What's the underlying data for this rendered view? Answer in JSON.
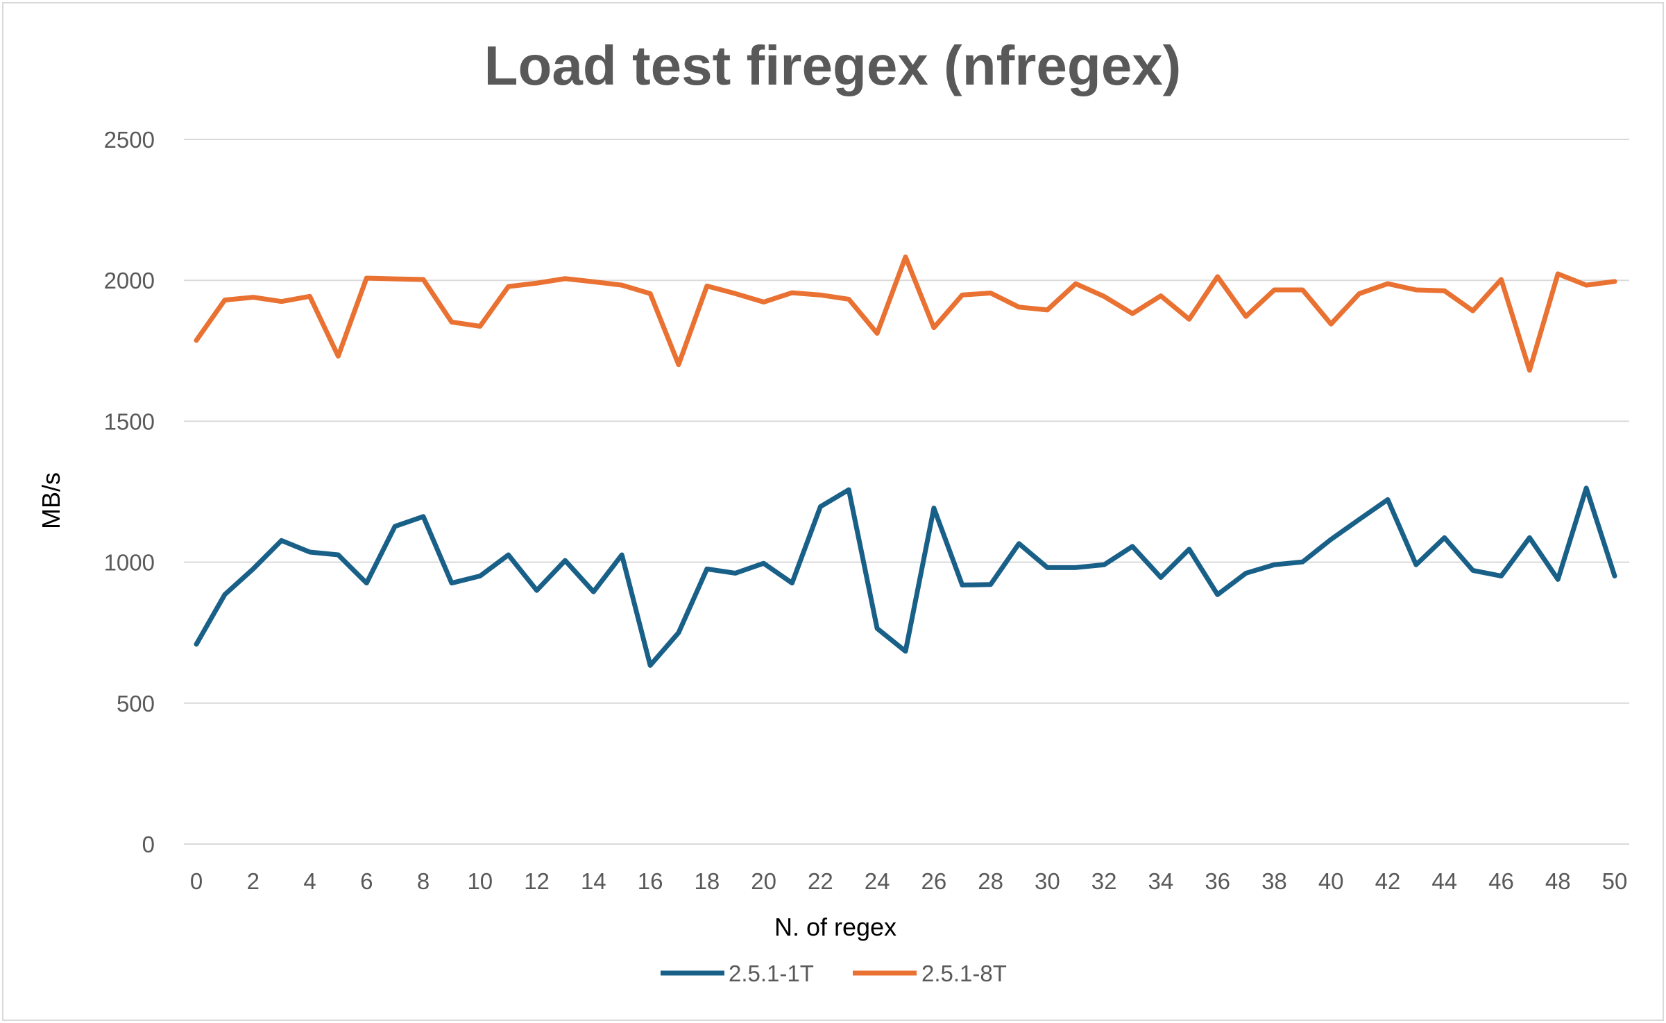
{
  "chart_data": {
    "type": "line",
    "title": "Load test firegex (nfregex)",
    "xlabel": "N. of regex",
    "ylabel": "MB/s",
    "ylim": [
      0,
      2500
    ],
    "yticks": [
      0,
      500,
      1000,
      1500,
      2000,
      2500
    ],
    "xlim": [
      0,
      50
    ],
    "xticks": [
      0,
      2,
      4,
      6,
      8,
      10,
      12,
      14,
      16,
      18,
      20,
      22,
      24,
      26,
      28,
      30,
      32,
      34,
      36,
      38,
      40,
      42,
      44,
      46,
      48,
      50
    ],
    "grid": "horizontal",
    "legend_position": "bottom",
    "x": [
      0,
      1,
      2,
      3,
      4,
      5,
      6,
      7,
      8,
      9,
      10,
      11,
      12,
      13,
      14,
      15,
      16,
      17,
      18,
      19,
      20,
      21,
      22,
      23,
      24,
      25,
      26,
      27,
      28,
      29,
      30,
      31,
      32,
      33,
      34,
      35,
      36,
      37,
      38,
      39,
      40,
      41,
      42,
      43,
      44,
      45,
      46,
      47,
      48,
      49,
      50
    ],
    "series": [
      {
        "name": "2.5.1-1T",
        "color": "#196088",
        "values": [
          709,
          885,
          976,
          1077,
          1036,
          1026,
          926,
          1127,
          1162,
          926,
          951,
          1026,
          900,
          1006,
          895,
          1026,
          634,
          750,
          976,
          961,
          996,
          926,
          1197,
          1257,
          765,
          684,
          1192,
          919,
          921,
          1066,
          981,
          981,
          991,
          1056,
          946,
          1046,
          885,
          961,
          991,
          1001,
          1081,
          1152,
          1222,
          991,
          1087,
          971,
          951,
          1087,
          939,
          1263,
          951
        ]
      },
      {
        "name": "2.5.1-8T",
        "color": "#E97132",
        "values": [
          1787,
          1930,
          1940,
          1925,
          1943,
          1731,
          2008,
          2005,
          2003,
          1852,
          1837,
          1978,
          1990,
          2006,
          1995,
          1983,
          1953,
          1701,
          1980,
          1953,
          1923,
          1956,
          1948,
          1933,
          1812,
          2083,
          1832,
          1948,
          1955,
          1905,
          1895,
          1988,
          1943,
          1882,
          1945,
          1862,
          2013,
          1872,
          1966,
          1966,
          1845,
          1953,
          1988,
          1966,
          1963,
          1892,
          2003,
          1681,
          2023,
          1983,
          1996
        ]
      }
    ]
  }
}
